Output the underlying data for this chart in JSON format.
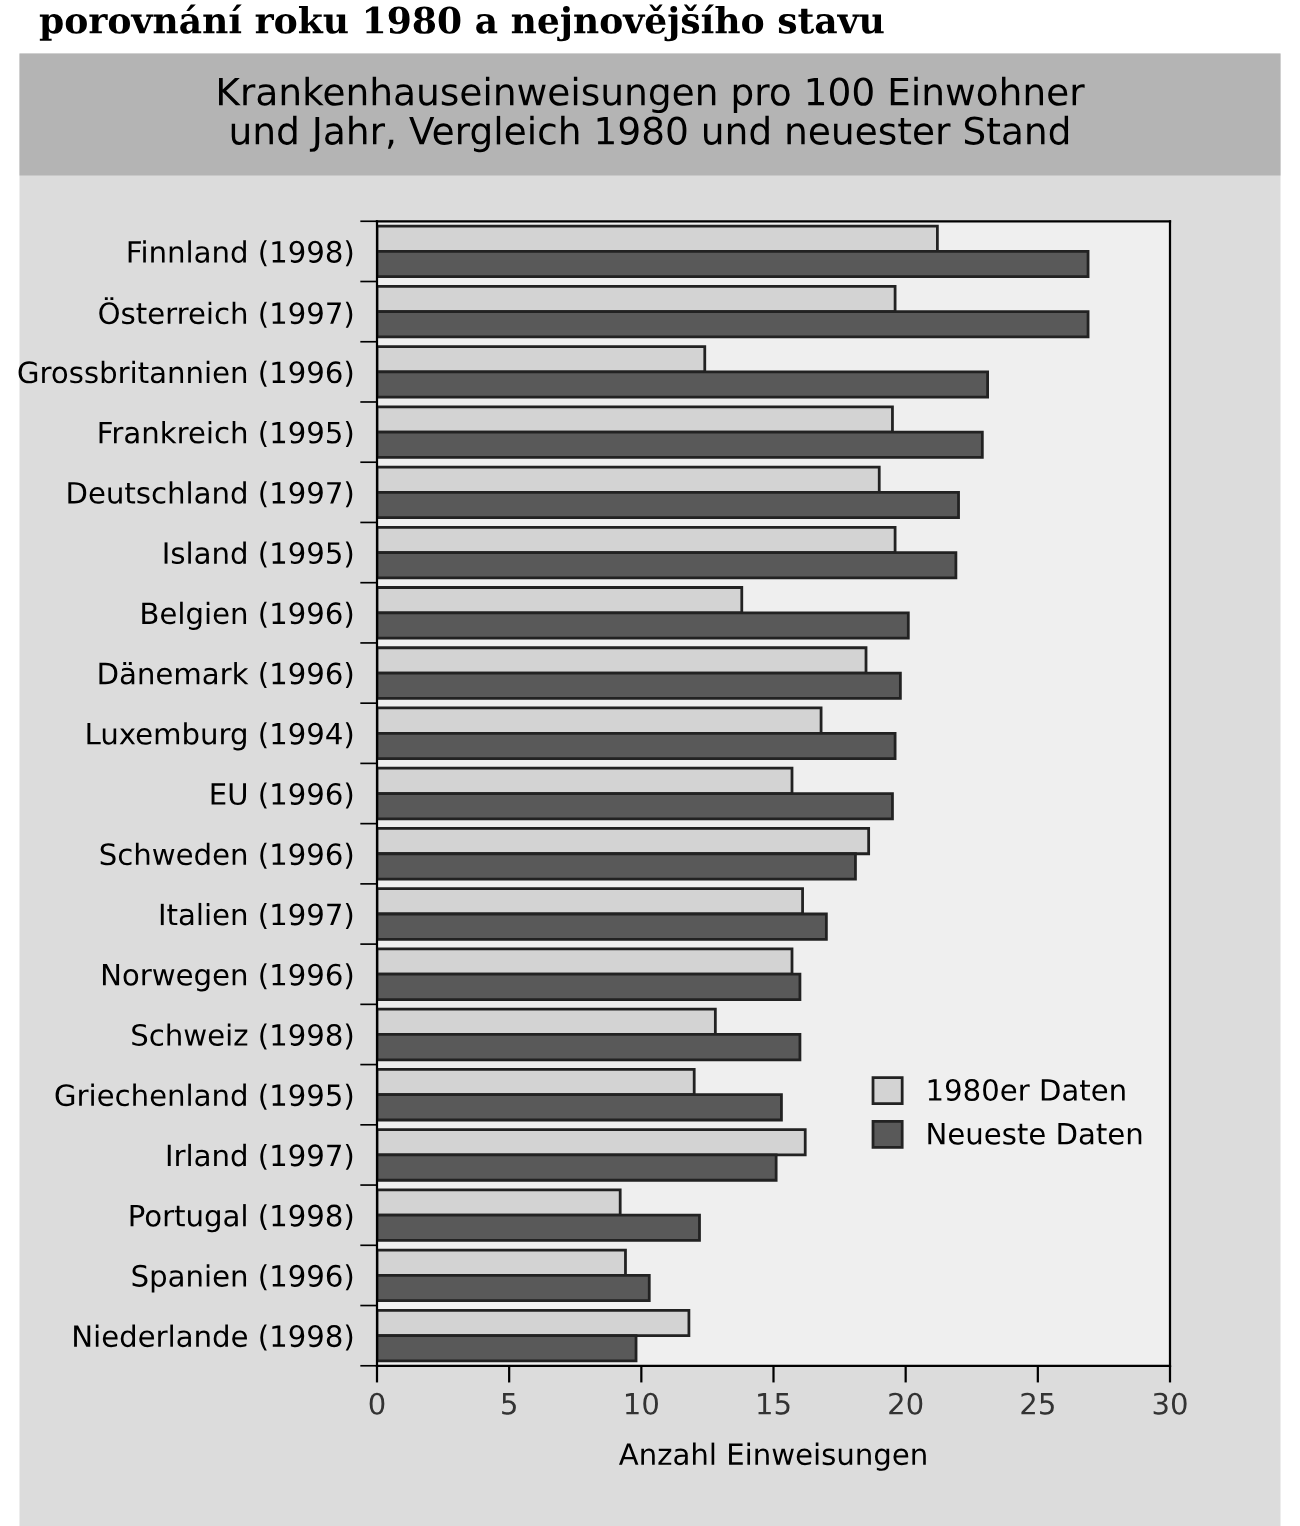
{
  "chart_data": {
    "type": "bar",
    "orientation": "horizontal",
    "title": "Krankenhauseinweisungen pro 100 Einwohner\nund Jahr, Vergleich 1980 und neuester Stand",
    "xlabel": "Anzahl Einweisungen",
    "annotations": [
      "porovnání roku 1980 a nejnovějšího stavu"
    ],
    "categories": [
      "Finnland (1998)",
      "Österreich (1997)",
      "Grossbritannien (1996)",
      "Frankreich (1995)",
      "Deutschland (1997)",
      "Island (1995)",
      "Belgien (1996)",
      "Dänemark (1996)",
      "Luxemburg (1994)",
      "EU (1996)",
      "Schweden (1996)",
      "Italien (1997)",
      "Norwegen (1996)",
      "Schweiz (1998)",
      "Griechenland (1995)",
      "Irland (1997)",
      "Portugal (1998)",
      "Spanien (1996)",
      "Niederlande (1998)"
    ],
    "series": [
      {
        "name": "1980er Daten",
        "color": "#d3d3d3",
        "values": [
          21.2,
          19.6,
          12.4,
          19.5,
          19.0,
          19.6,
          13.8,
          18.5,
          16.8,
          15.7,
          18.6,
          16.1,
          15.7,
          12.8,
          12.0,
          16.2,
          9.2,
          9.4,
          11.8
        ]
      },
      {
        "name": "Neueste Daten",
        "color": "#595959",
        "values": [
          26.9,
          26.9,
          23.1,
          22.9,
          22.0,
          21.9,
          20.1,
          19.8,
          19.6,
          19.5,
          18.1,
          17.0,
          16.0,
          16.0,
          15.3,
          15.1,
          12.2,
          10.3,
          9.8
        ]
      }
    ],
    "xlim": [
      0,
      30
    ],
    "xticks": [
      0,
      5,
      10,
      15,
      20,
      25,
      30
    ],
    "grid": false,
    "legend": "right"
  }
}
